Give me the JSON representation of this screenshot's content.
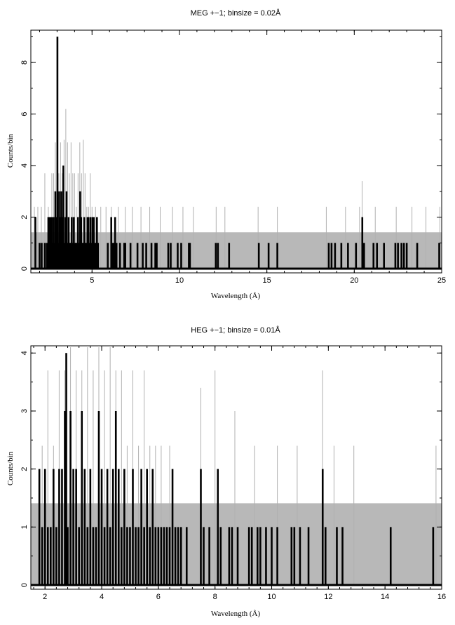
{
  "chart_data": [
    {
      "type": "bar",
      "title": "MEG +−1; binsize = 0.02Å",
      "xlabel": "Wavelength (Å)",
      "ylabel": "Counts/bin",
      "xlim": [
        1.5,
        25
      ],
      "ylim": [
        0,
        9.2
      ],
      "xticks": [
        5,
        10,
        15,
        20,
        25
      ],
      "yticks": [
        0,
        2,
        4,
        6,
        8
      ],
      "grid": false,
      "band": {
        "y0": 0,
        "y1": 1.41,
        "color": "#b8b8b8"
      },
      "colors": {
        "counts": "#000000",
        "background": "#b0b0b0"
      },
      "series": [
        {
          "x": [
            1.76,
            2.0,
            2.12,
            2.3,
            2.42,
            2.5,
            2.56,
            2.6,
            2.64,
            2.7,
            2.76,
            2.8,
            2.86,
            2.9,
            2.96,
            3.02,
            3.06,
            3.12,
            3.18,
            3.24,
            3.3,
            3.36,
            3.42,
            3.48,
            3.54,
            3.6,
            3.66,
            3.72,
            3.78,
            3.84,
            3.9,
            3.96,
            4.02,
            4.08,
            4.14,
            4.2,
            4.26,
            4.32,
            4.38,
            4.44,
            4.5,
            4.56,
            4.62,
            4.68,
            4.74,
            4.8,
            4.86,
            4.92,
            4.98,
            5.04,
            5.1,
            5.16,
            5.22,
            5.28,
            5.34,
            5.9,
            6.1,
            6.2,
            6.26,
            6.32,
            6.4,
            6.6,
            6.84,
            6.9,
            7.2,
            7.6,
            7.9,
            8.1,
            8.4,
            8.62,
            8.7,
            9.36,
            9.5,
            9.9,
            10.1,
            10.54,
            10.6,
            12.08,
            12.2,
            12.84,
            14.54,
            15.1,
            15.6,
            18.54,
            18.7,
            18.9,
            19.26,
            19.64,
            20.1,
            20.46,
            20.56,
            21.1,
            21.3,
            21.7,
            22.35,
            22.5,
            22.7,
            22.84,
            23.0,
            23.6,
            24.86
          ],
          "values": [
            2,
            1,
            1,
            1,
            1,
            2,
            2,
            1,
            2,
            2,
            1,
            2,
            1,
            3,
            2,
            9,
            1,
            3,
            2,
            3,
            2,
            4,
            1,
            2,
            3,
            1,
            2,
            1,
            1,
            2,
            1,
            2,
            1,
            1,
            1,
            2,
            1,
            3,
            2,
            1,
            1,
            2,
            1,
            1,
            2,
            2,
            1,
            2,
            1,
            2,
            2,
            1,
            1,
            2,
            1,
            1,
            2,
            1,
            1,
            2,
            1,
            1,
            1,
            1,
            1,
            1,
            1,
            1,
            1,
            1,
            1,
            1,
            1,
            1,
            1,
            1,
            1,
            1,
            1,
            1,
            1,
            1,
            1,
            1,
            1,
            1,
            1,
            1,
            1,
            2,
            1,
            1,
            1,
            1,
            1,
            1,
            1,
            1,
            1,
            1,
            1
          ]
        },
        {
          "x": [
            1.7,
            1.9,
            2.1,
            2.3,
            2.5,
            2.7,
            2.8,
            2.9,
            3.0,
            3.1,
            3.2,
            3.3,
            3.4,
            3.5,
            3.6,
            3.7,
            3.8,
            3.9,
            4.0,
            4.1,
            4.2,
            4.3,
            4.4,
            4.5,
            4.6,
            4.7,
            4.8,
            4.9,
            5.0,
            5.2,
            5.5,
            5.8,
            6.1,
            6.5,
            6.9,
            7.3,
            7.8,
            8.3,
            8.9,
            9.6,
            10.2,
            10.8,
            12.1,
            12.6,
            14.5,
            15.6,
            18.4,
            19.5,
            20.3,
            20.45,
            21.2,
            22.4,
            23.3,
            24.1,
            24.9
          ],
          "values": [
            2.4,
            2.4,
            2.4,
            3.7,
            2.4,
            3.7,
            3.7,
            4.9,
            5.0,
            3.7,
            4.9,
            3.7,
            5.0,
            6.2,
            4.9,
            3.7,
            4.9,
            3.7,
            3.7,
            2.4,
            3.7,
            4.9,
            3.7,
            5.0,
            3.7,
            2.4,
            2.4,
            3.7,
            2.4,
            2.4,
            2.4,
            2.4,
            2.4,
            2.4,
            2.4,
            2.4,
            2.4,
            2.4,
            2.4,
            2.4,
            2.4,
            2.4,
            2.4,
            2.4,
            2.4,
            2.4,
            2.4,
            2.4,
            2.4,
            3.4,
            2.4,
            2.4,
            2.4,
            2.4,
            2.4
          ]
        }
      ]
    },
    {
      "type": "bar",
      "title": "HEG +−1; binsize = 0.01Å",
      "xlabel": "Wavelength (Å)",
      "ylabel": "Counts/bin",
      "xlim": [
        1.5,
        16
      ],
      "ylim": [
        0,
        4.1
      ],
      "xticks": [
        2,
        4,
        6,
        8,
        10,
        12,
        14,
        16
      ],
      "yticks": [
        0,
        1,
        2,
        3,
        4
      ],
      "grid": false,
      "band": {
        "y0": 0,
        "y1": 1.41,
        "color": "#b8b8b8"
      },
      "colors": {
        "counts": "#000000",
        "background": "#b0b0b0"
      },
      "series": [
        {
          "x": [
            1.8,
            1.9,
            2.0,
            2.1,
            2.2,
            2.3,
            2.4,
            2.5,
            2.6,
            2.7,
            2.75,
            2.8,
            2.9,
            3.0,
            3.1,
            3.2,
            3.3,
            3.4,
            3.5,
            3.6,
            3.7,
            3.8,
            3.9,
            4.0,
            4.1,
            4.2,
            4.3,
            4.4,
            4.5,
            4.6,
            4.7,
            4.8,
            4.9,
            5.0,
            5.1,
            5.2,
            5.3,
            5.4,
            5.5,
            5.6,
            5.7,
            5.8,
            5.9,
            6.0,
            6.1,
            6.2,
            6.3,
            6.4,
            6.5,
            6.6,
            6.7,
            6.8,
            7.0,
            7.5,
            7.6,
            7.8,
            8.1,
            8.2,
            8.5,
            8.6,
            8.8,
            9.2,
            9.3,
            9.5,
            9.6,
            9.8,
            10.0,
            10.2,
            10.7,
            10.8,
            11.0,
            11.3,
            11.8,
            11.9,
            12.3,
            12.5,
            14.2,
            15.7
          ],
          "values": [
            2,
            1,
            2,
            1,
            1,
            2,
            1,
            2,
            2,
            3,
            4,
            1,
            3,
            2,
            2,
            1,
            3,
            2,
            1,
            2,
            1,
            1,
            3,
            2,
            1,
            2,
            1,
            2,
            3,
            2,
            1,
            2,
            1,
            1,
            2,
            1,
            1,
            2,
            1,
            2,
            1,
            2,
            1,
            1,
            1,
            1,
            1,
            1,
            2,
            1,
            1,
            1,
            1,
            2,
            1,
            1,
            2,
            1,
            1,
            1,
            1,
            1,
            1,
            1,
            1,
            1,
            1,
            1,
            1,
            1,
            1,
            1,
            2,
            1,
            1,
            1,
            1,
            1
          ]
        },
        {
          "x": [
            1.9,
            2.1,
            2.3,
            2.5,
            2.7,
            2.9,
            3.1,
            3.3,
            3.5,
            3.7,
            3.9,
            4.1,
            4.3,
            4.5,
            4.7,
            4.9,
            5.1,
            5.3,
            5.5,
            5.7,
            5.9,
            6.1,
            6.4,
            7.5,
            8.0,
            8.7,
            9.4,
            10.2,
            10.9,
            11.8,
            12.2,
            12.9,
            15.8
          ],
          "values": [
            2.4,
            3.7,
            2.4,
            3.7,
            3.7,
            4.1,
            3.7,
            3.7,
            4.1,
            3.7,
            4.1,
            3.7,
            4.1,
            3.7,
            3.7,
            2.4,
            3.7,
            2.4,
            3.7,
            2.4,
            2.4,
            2.4,
            2.4,
            3.4,
            3.7,
            3.0,
            2.4,
            2.4,
            2.4,
            3.7,
            2.4,
            2.4,
            2.4
          ]
        }
      ]
    }
  ]
}
